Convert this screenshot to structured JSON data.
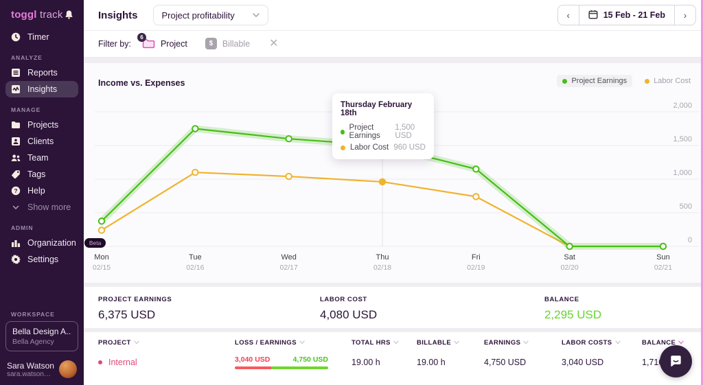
{
  "brand": {
    "logo_bold": "toggl",
    "logo_light": "track"
  },
  "sidebar": {
    "groups": [
      {
        "title": "",
        "items": [
          {
            "label": "Timer",
            "icon": "clock"
          }
        ]
      },
      {
        "title": "ANALYZE",
        "items": [
          {
            "label": "Reports",
            "icon": "reports"
          },
          {
            "label": "Insights",
            "icon": "insights",
            "active": true
          }
        ]
      },
      {
        "title": "MANAGE",
        "items": [
          {
            "label": "Projects",
            "icon": "folder"
          },
          {
            "label": "Clients",
            "icon": "client"
          },
          {
            "label": "Team",
            "icon": "team"
          },
          {
            "label": "Tags",
            "icon": "tag"
          },
          {
            "label": "Help",
            "icon": "help"
          },
          {
            "label": "Show more",
            "icon": "chevron",
            "muted": true
          }
        ]
      },
      {
        "title": "ADMIN",
        "items": [
          {
            "label": "Organization",
            "icon": "org",
            "badge": "Beta"
          },
          {
            "label": "Settings",
            "icon": "gear"
          }
        ]
      }
    ],
    "workspace": {
      "section_label": "WORKSPACE",
      "name": "Bella Design A...",
      "org": "Bella Agency"
    },
    "user": {
      "name": "Sara Watson",
      "email": "sara.watson@toggl..."
    }
  },
  "header": {
    "title": "Insights",
    "view_selector": "Project profitability",
    "date_range": "15 Feb - 21 Feb"
  },
  "filter_bar": {
    "label": "Filter by:",
    "filters": [
      {
        "label": "Project",
        "icon": "folder-pink",
        "badge": "6",
        "active": true
      },
      {
        "label": "Billable",
        "icon": "dollar",
        "active": false
      }
    ]
  },
  "chart": {
    "title": "Income vs. Expenses",
    "tooltip": {
      "title": "Thursday February 18th",
      "rows": [
        {
          "label": "Project Earnings",
          "value": "1,500 USD",
          "color": "#47BE16"
        },
        {
          "label": "Labor Cost",
          "value": "960 USD",
          "color": "#F0B32E"
        }
      ]
    }
  },
  "chart_data": {
    "type": "line",
    "title": "Income vs. Expenses",
    "x": [
      "Mon",
      "Tue",
      "Wed",
      "Thu",
      "Fri",
      "Sat",
      "Sun"
    ],
    "x_dates": [
      "02/15",
      "02/16",
      "02/17",
      "02/18",
      "02/19",
      "02/20",
      "02/21"
    ],
    "series": [
      {
        "name": "Project Earnings",
        "color": "#47BE16",
        "glow": true,
        "active": true,
        "values": [
          375,
          1750,
          1600,
          1500,
          1150,
          0,
          0
        ]
      },
      {
        "name": "Labor Cost",
        "color": "#F0B32E",
        "glow": false,
        "active": false,
        "values": [
          240,
          1100,
          1040,
          960,
          740,
          0,
          0
        ]
      }
    ],
    "ylim": [
      0,
      2000
    ],
    "yticks": [
      0,
      500,
      1000,
      1500,
      2000
    ],
    "ytick_labels": [
      "0",
      "500",
      "1,000",
      "1,500",
      "2,000"
    ],
    "hover_index": 3,
    "grid": true,
    "legend_position": "top-right"
  },
  "summary": {
    "items": [
      {
        "label": "PROJECT EARNINGS",
        "value": "6,375 USD",
        "highlight": false
      },
      {
        "label": "LABOR COST",
        "value": "4,080 USD",
        "highlight": false
      },
      {
        "label": "BALANCE",
        "value": "2,295 USD",
        "highlight": true
      }
    ]
  },
  "table": {
    "columns": [
      {
        "label": "PROJECT"
      },
      {
        "label": "LOSS / EARNINGS"
      },
      {
        "label": "TOTAL HRS"
      },
      {
        "label": "BILLABLE"
      },
      {
        "label": "EARNINGS"
      },
      {
        "label": "LABOR COSTS"
      },
      {
        "label": "BALANCE",
        "sort_active": true
      }
    ],
    "rows": [
      {
        "project": "Internal",
        "project_color": "#E04B77",
        "loss": "3,040 USD",
        "loss_amount": 3040,
        "gain": "4,750 USD",
        "gain_amount": 4750,
        "total_hrs": "19.00 h",
        "billable": "19.00 h",
        "earnings": "4,750 USD",
        "labor_costs": "3,040 USD",
        "balance": "1,710 USD"
      }
    ]
  }
}
